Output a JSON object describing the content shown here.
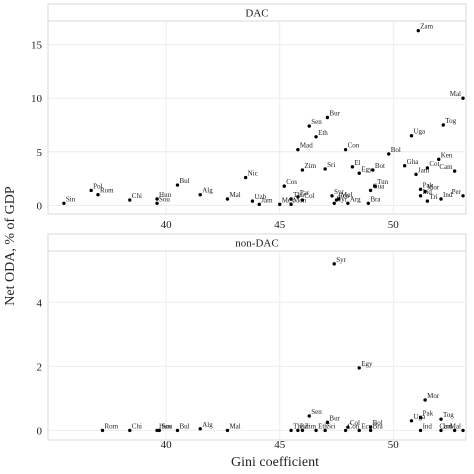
{
  "chart_data": {
    "type": "scatter",
    "xlabel": "Gini coefficient",
    "ylabel": "Net ODA, % of GDP",
    "xlim": [
      34.8,
      53.2
    ],
    "x_ticks": [
      40,
      45,
      50
    ],
    "grid": true,
    "legend": "none",
    "panels": [
      {
        "strip": "DAC",
        "ylim": [
          -0.8,
          17.2
        ],
        "y_ticks": [
          0,
          5,
          10,
          15
        ],
        "points": [
          {
            "label": "Sin",
            "x": 35.5,
            "y": 0.2
          },
          {
            "label": "Pol",
            "x": 36.7,
            "y": 1.4
          },
          {
            "label": "Rom",
            "x": 37.0,
            "y": 1.0
          },
          {
            "label": "Chi",
            "x": 38.4,
            "y": 0.5
          },
          {
            "label": "Hun",
            "x": 39.6,
            "y": 0.6
          },
          {
            "label": "Sou",
            "x": 39.6,
            "y": 0.2
          },
          {
            "label": "Bul",
            "x": 40.5,
            "y": 1.9
          },
          {
            "label": "Alg",
            "x": 41.5,
            "y": 1.0
          },
          {
            "label": "Mal",
            "x": 42.7,
            "y": 0.6
          },
          {
            "label": "Nic",
            "x": 43.5,
            "y": 2.6
          },
          {
            "label": "Uzb",
            "x": 43.8,
            "y": 0.4
          },
          {
            "label": "Jam",
            "x": 44.1,
            "y": 0.1
          },
          {
            "label": "Mex",
            "x": 45.0,
            "y": 0.1
          },
          {
            "label": "Cos",
            "x": 45.2,
            "y": 1.8
          },
          {
            "label": "Tha",
            "x": 45.5,
            "y": 0.6
          },
          {
            "label": "Par",
            "x": 45.8,
            "y": 0.8
          },
          {
            "label": "Mon",
            "x": 45.5,
            "y": 0.1
          },
          {
            "label": "Mad",
            "x": 45.8,
            "y": 5.2
          },
          {
            "label": "Zim",
            "x": 46.0,
            "y": 3.3
          },
          {
            "label": "Col",
            "x": 46.0,
            "y": 0.5
          },
          {
            "label": "Sen",
            "x": 46.3,
            "y": 7.4
          },
          {
            "label": "Eth",
            "x": 46.6,
            "y": 6.4
          },
          {
            "label": "Bur",
            "x": 47.1,
            "y": 8.2
          },
          {
            "label": "Sri",
            "x": 47.0,
            "y": 3.4
          },
          {
            "label": "Syr",
            "x": 47.3,
            "y": 0.9
          },
          {
            "label": "Ecu",
            "x": 47.5,
            "y": 0.5
          },
          {
            "label": "Kyr",
            "x": 47.4,
            "y": 0.2
          },
          {
            "label": "Mol",
            "x": 47.6,
            "y": 0.6
          },
          {
            "label": "Arg",
            "x": 48.0,
            "y": 0.2
          },
          {
            "label": "Con",
            "x": 47.9,
            "y": 5.2
          },
          {
            "label": "El",
            "x": 48.2,
            "y": 3.6
          },
          {
            "label": "Egy",
            "x": 48.5,
            "y": 3.0
          },
          {
            "label": "Bra",
            "x": 48.9,
            "y": 0.2
          },
          {
            "label": "Gua",
            "x": 49.0,
            "y": 1.4
          },
          {
            "label": "Bot",
            "x": 49.1,
            "y": 3.3
          },
          {
            "label": "Tun",
            "x": 49.2,
            "y": 1.8
          },
          {
            "label": "Bol",
            "x": 49.8,
            "y": 4.8
          },
          {
            "label": "Gha",
            "x": 50.5,
            "y": 3.7
          },
          {
            "label": "Uga",
            "x": 50.8,
            "y": 6.5
          },
          {
            "label": "Zam",
            "x": 51.1,
            "y": 16.3
          },
          {
            "label": "Jam",
            "x": 51.0,
            "y": 2.9
          },
          {
            "label": "Pak",
            "x": 51.2,
            "y": 1.5
          },
          {
            "label": "Ind",
            "x": 51.2,
            "y": 0.9
          },
          {
            "label": "Mor",
            "x": 51.4,
            "y": 1.3
          },
          {
            "label": "Cot",
            "x": 51.5,
            "y": 3.5
          },
          {
            "label": "Tri",
            "x": 51.5,
            "y": 0.4
          },
          {
            "label": "Ken",
            "x": 52.0,
            "y": 4.3
          },
          {
            "label": "Ind",
            "x": 52.1,
            "y": 0.6
          },
          {
            "label": "Tog",
            "x": 52.2,
            "y": 7.5
          },
          {
            "label": "Cam",
            "x": 52.7,
            "y": 3.2
          },
          {
            "label": "Per",
            "x": 53.4,
            "y": 0.9
          },
          {
            "label": "Mal",
            "x": 53.4,
            "y": 10.0
          }
        ]
      },
      {
        "strip": "non-DAC",
        "ylim": [
          -0.3,
          5.6
        ],
        "y_ticks": [
          0,
          2,
          4
        ],
        "points": [
          {
            "label": "Syr",
            "x": 47.4,
            "y": 5.2
          },
          {
            "label": "Egy",
            "x": 48.5,
            "y": 1.95
          },
          {
            "label": "Mor",
            "x": 51.4,
            "y": 0.95
          },
          {
            "label": "Rom",
            "x": 37.2,
            "y": 0.0
          },
          {
            "label": "Chi",
            "x": 38.4,
            "y": 0.0
          },
          {
            "label": "Hun",
            "x": 39.6,
            "y": 0.0
          },
          {
            "label": "Sou",
            "x": 39.7,
            "y": 0.0
          },
          {
            "label": "Bul",
            "x": 40.5,
            "y": 0.0
          },
          {
            "label": "Alg",
            "x": 41.5,
            "y": 0.05
          },
          {
            "label": "Mal",
            "x": 42.7,
            "y": 0.0
          },
          {
            "label": "Tha",
            "x": 45.5,
            "y": 0.0
          },
          {
            "label": "Par",
            "x": 45.8,
            "y": 0.0
          },
          {
            "label": "Zim",
            "x": 46.0,
            "y": 0.0
          },
          {
            "label": "Eth",
            "x": 46.6,
            "y": 0.0
          },
          {
            "label": "Sen",
            "x": 46.3,
            "y": 0.45
          },
          {
            "label": "Sri",
            "x": 47.0,
            "y": 0.0
          },
          {
            "label": "Bur",
            "x": 47.1,
            "y": 0.25
          },
          {
            "label": "Con",
            "x": 47.9,
            "y": 0.0
          },
          {
            "label": "Col",
            "x": 48.0,
            "y": 0.1
          },
          {
            "label": "Ecu",
            "x": 48.5,
            "y": 0.0
          },
          {
            "label": "Bol",
            "x": 49.0,
            "y": 0.1
          },
          {
            "label": "Bra",
            "x": 49.0,
            "y": 0.0
          },
          {
            "label": "Uga",
            "x": 50.8,
            "y": 0.3
          },
          {
            "label": "Pak",
            "x": 51.2,
            "y": 0.4
          },
          {
            "label": "Ind",
            "x": 51.2,
            "y": 0.0
          },
          {
            "label": "Tog",
            "x": 52.1,
            "y": 0.35
          },
          {
            "label": "Ind",
            "x": 52.1,
            "y": 0.0
          },
          {
            "label": "Cam",
            "x": 52.7,
            "y": 0.0
          },
          {
            "label": "Mal",
            "x": 53.4,
            "y": 0.0
          }
        ]
      }
    ]
  }
}
